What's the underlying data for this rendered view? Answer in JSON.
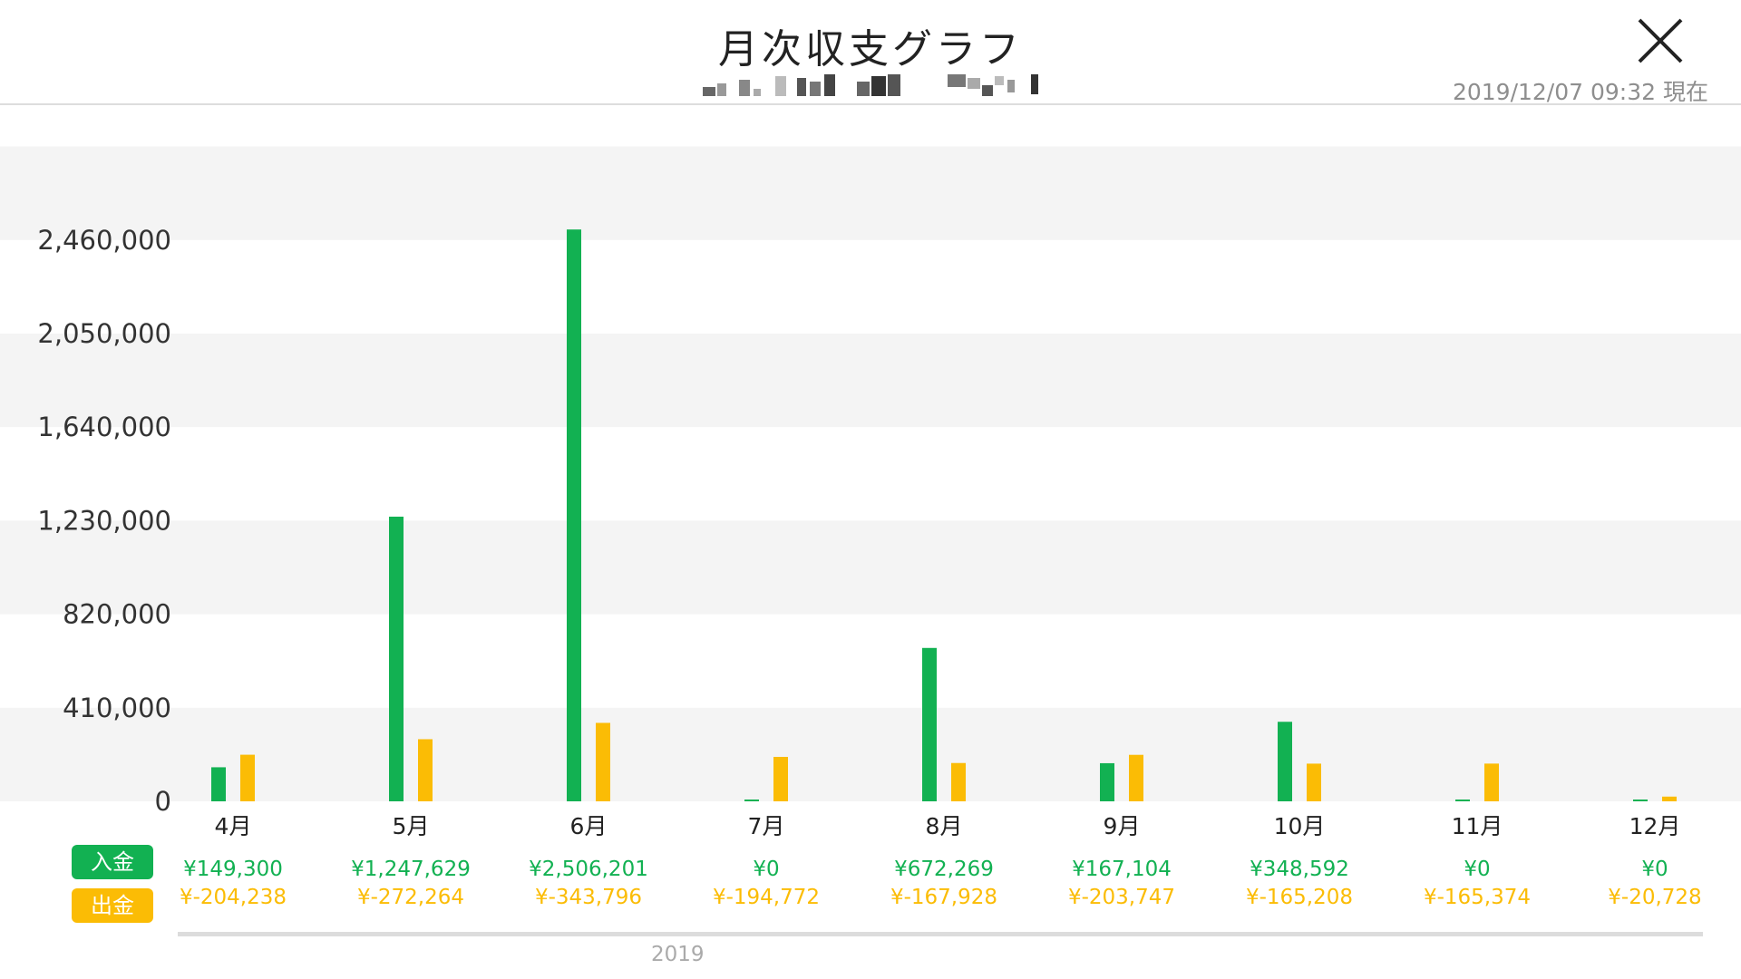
{
  "header": {
    "title": "月次収支グラフ",
    "timestamp": "2019/12/07 09:32 現在"
  },
  "legend": {
    "income_label": "入金",
    "expense_label": "出金"
  },
  "year_label": "2019",
  "colors": {
    "income": "#12b152",
    "expense": "#fbbc05"
  },
  "chart_data": {
    "type": "bar",
    "categories": [
      "4月",
      "5月",
      "6月",
      "7月",
      "8月",
      "9月",
      "10月",
      "11月",
      "12月"
    ],
    "y_ticks": [
      0,
      410000,
      820000,
      1230000,
      1640000,
      2050000,
      2460000
    ],
    "y_tick_labels": [
      "0",
      "410,000",
      "820,000",
      "1,230,000",
      "1,640,000",
      "2,050,000",
      "2,460,000"
    ],
    "ylim": [
      0,
      2870000
    ],
    "grid": "alternating bands",
    "series": [
      {
        "name": "入金",
        "values": [
          149300,
          1247629,
          2506201,
          0,
          672269,
          167104,
          348592,
          0,
          0
        ],
        "value_labels": [
          "¥149,300",
          "¥1,247,629",
          "¥2,506,201",
          "¥0",
          "¥672,269",
          "¥167,104",
          "¥348,592",
          "¥0",
          "¥0"
        ]
      },
      {
        "name": "出金",
        "values": [
          -204238,
          -272264,
          -343796,
          -194772,
          -167928,
          -203747,
          -165208,
          -165374,
          -20728
        ],
        "value_labels": [
          "¥-204,238",
          "¥-272,264",
          "¥-343,796",
          "¥-194,772",
          "¥-167,928",
          "¥-203,747",
          "¥-165,208",
          "¥-165,374",
          "¥-20,728"
        ]
      }
    ]
  }
}
